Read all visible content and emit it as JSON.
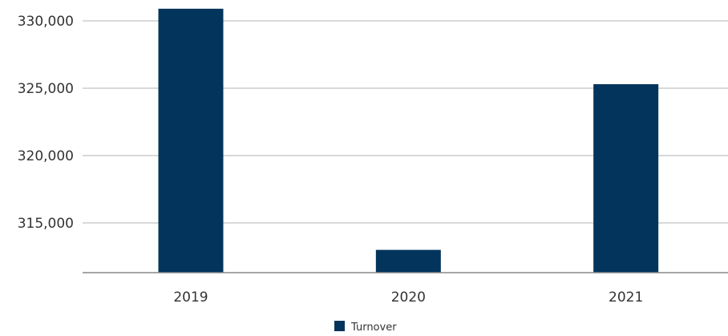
{
  "chart_data": {
    "type": "bar",
    "categories": [
      "2019",
      "2020",
      "2021"
    ],
    "series": [
      {
        "name": "Turnover",
        "values": [
          330900,
          313000,
          325300
        ]
      }
    ],
    "ylim": [
      311200,
      331500
    ],
    "yticks": [
      315000,
      320000,
      325000,
      330000
    ],
    "ytick_labels": [
      "315,000",
      "320,000",
      "325,000",
      "330,000"
    ],
    "grid": true,
    "legend_position": "bottom-center",
    "bar_color": "#02345c",
    "title": "",
    "xlabel": "",
    "ylabel": ""
  }
}
